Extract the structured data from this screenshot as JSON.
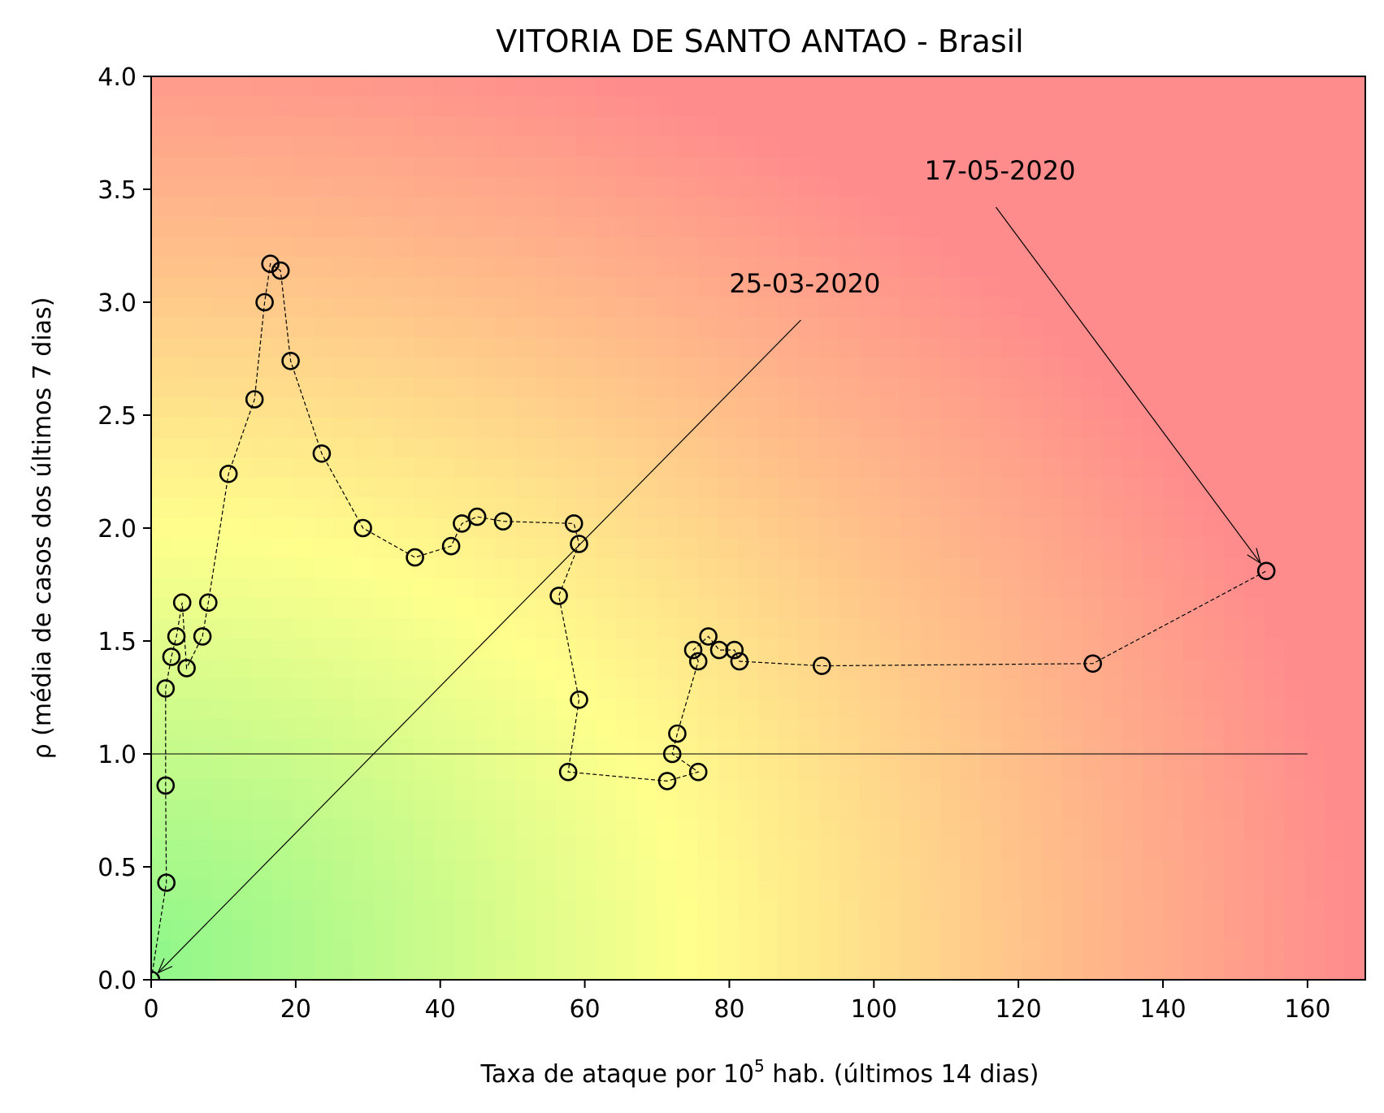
{
  "chart_data": {
    "type": "scatter",
    "title": "VITORIA DE SANTO ANTAO - Brasil",
    "xlabel_main": "Taxa de ataque por 10",
    "xlabel_sup": "5",
    "xlabel_tail": " hab. (últimos 14 dias)",
    "ylabel": "ρ (média de casos dos últimos 7 dias)",
    "xlim": [
      0,
      168
    ],
    "ylim": [
      0,
      4.0
    ],
    "xticks": [
      0,
      20,
      40,
      60,
      80,
      100,
      120,
      140,
      160
    ],
    "xtick_labels": [
      "0",
      "20",
      "40",
      "60",
      "80",
      "100",
      "120",
      "140",
      "160"
    ],
    "yticks": [
      0,
      0.5,
      1.0,
      1.5,
      2.0,
      2.5,
      3.0,
      3.5,
      4.0
    ],
    "ytick_labels": [
      "0.0",
      "0.5",
      "1.0",
      "1.5",
      "2.0",
      "2.5",
      "3.0",
      "3.5",
      "4.0"
    ],
    "grid": false,
    "background": "green-yellow-red gradient",
    "reference_line": {
      "y": 1.0,
      "x": [
        0,
        160
      ]
    },
    "colors": {
      "green": "#8ff78a",
      "yellow": "#ffff8c",
      "orange": "#ffbe8a",
      "red": "#ff8c8c",
      "marker": "#000000"
    },
    "series": [
      {
        "points": [
          [
            0.0,
            0.0
          ],
          [
            2.1,
            0.43
          ],
          [
            2.0,
            0.86
          ],
          [
            2.0,
            1.29
          ],
          [
            2.8,
            1.43
          ],
          [
            3.5,
            1.52
          ],
          [
            4.3,
            1.67
          ],
          [
            4.9,
            1.38
          ],
          [
            7.1,
            1.52
          ],
          [
            7.9,
            1.67
          ],
          [
            10.7,
            2.24
          ],
          [
            14.3,
            2.57
          ],
          [
            15.7,
            3.0
          ],
          [
            16.5,
            3.17
          ],
          [
            17.9,
            3.14
          ],
          [
            19.3,
            2.74
          ],
          [
            23.6,
            2.33
          ],
          [
            29.3,
            2.0
          ],
          [
            36.5,
            1.87
          ],
          [
            41.5,
            1.92
          ],
          [
            43.0,
            2.02
          ],
          [
            45.1,
            2.05
          ],
          [
            48.7,
            2.03
          ],
          [
            58.5,
            2.02
          ],
          [
            59.2,
            1.93
          ],
          [
            56.4,
            1.7
          ],
          [
            59.2,
            1.24
          ],
          [
            57.7,
            0.92
          ],
          [
            71.4,
            0.88
          ],
          [
            75.7,
            0.92
          ],
          [
            72.1,
            1.0
          ],
          [
            72.8,
            1.09
          ],
          [
            75.7,
            1.41
          ],
          [
            75.0,
            1.46
          ],
          [
            77.1,
            1.52
          ],
          [
            78.6,
            1.46
          ],
          [
            80.7,
            1.46
          ],
          [
            81.4,
            1.41
          ],
          [
            92.8,
            1.39
          ],
          [
            130.3,
            1.4
          ],
          [
            154.3,
            1.81
          ]
        ]
      }
    ],
    "annotations": [
      {
        "text": "25-03-2020",
        "x": 0.0,
        "y": 0.0,
        "text_x": 80.0,
        "text_y": 3.0
      },
      {
        "text": "17-05-2020",
        "x": 154.3,
        "y": 1.81,
        "text_x": 107.0,
        "text_y": 3.5
      }
    ]
  }
}
